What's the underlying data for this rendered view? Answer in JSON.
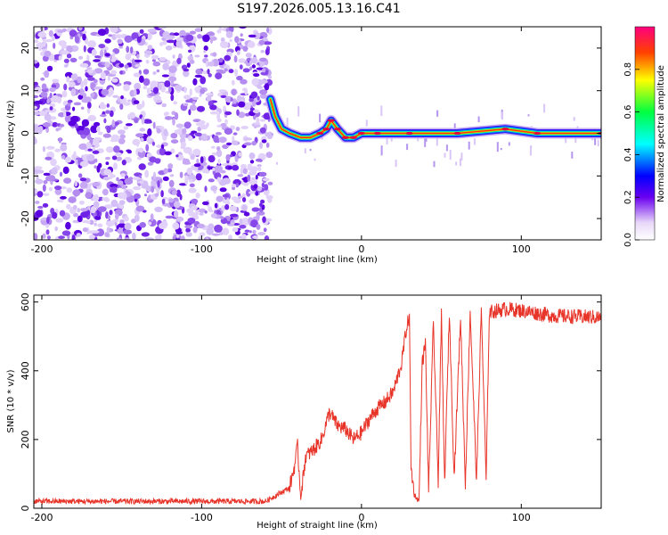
{
  "title": "S197.2026.005.13.16.C41",
  "chart_data": [
    {
      "type": "heatmap",
      "name": "spectrogram",
      "xlabel": "Height of straight line (km)",
      "ylabel": "Frequency (Hz)",
      "xlim": [
        -205,
        150
      ],
      "ylim": [
        -25,
        25
      ],
      "x_ticks": [
        -200,
        -100,
        0,
        100
      ],
      "y_ticks": [
        -20,
        -10,
        0,
        10,
        20
      ],
      "noise_region_x": [
        -205,
        -57
      ],
      "ridge": [
        {
          "x": -57,
          "y": 8
        },
        {
          "x": -54,
          "y": 4
        },
        {
          "x": -50,
          "y": 1
        },
        {
          "x": -45,
          "y": 0
        },
        {
          "x": -38,
          "y": -1
        },
        {
          "x": -32,
          "y": -1
        },
        {
          "x": -26,
          "y": 0
        },
        {
          "x": -22,
          "y": 1
        },
        {
          "x": -19,
          "y": 3
        },
        {
          "x": -15,
          "y": 1
        },
        {
          "x": -10,
          "y": -1
        },
        {
          "x": -5,
          "y": -1
        },
        {
          "x": 0,
          "y": 0
        },
        {
          "x": 10,
          "y": 0
        },
        {
          "x": 30,
          "y": 0
        },
        {
          "x": 60,
          "y": 0
        },
        {
          "x": 90,
          "y": 1
        },
        {
          "x": 110,
          "y": 0
        },
        {
          "x": 150,
          "y": 0
        }
      ],
      "colorbar": {
        "label": "Normalized spectral amplitude",
        "range": [
          0,
          1
        ],
        "ticks": [
          "0.0",
          "0.2",
          "0.4",
          "0.6",
          "0.8"
        ]
      }
    },
    {
      "type": "line",
      "name": "snr",
      "xlabel": "Height of straight line (km)",
      "ylabel": "SNR (10 * v/v)",
      "xlim": [
        -205,
        150
      ],
      "ylim": [
        0,
        620
      ],
      "x_ticks": [
        -200,
        -100,
        0,
        100
      ],
      "y_ticks": [
        0,
        200,
        400,
        600
      ],
      "color": "#e8352a",
      "x": [
        -205,
        -150,
        -100,
        -60,
        -45,
        -42,
        -40,
        -38,
        -35,
        -30,
        -25,
        -20,
        -15,
        -10,
        -5,
        0,
        5,
        10,
        15,
        20,
        25,
        28,
        30,
        31,
        33,
        36,
        38,
        40,
        42,
        45,
        48,
        50,
        52,
        55,
        58,
        62,
        65,
        68,
        72,
        75,
        78,
        80,
        85,
        90,
        100,
        120,
        150
      ],
      "y": [
        20,
        20,
        20,
        20,
        60,
        120,
        180,
        30,
        150,
        170,
        200,
        280,
        240,
        230,
        200,
        220,
        260,
        290,
        310,
        340,
        420,
        520,
        560,
        120,
        40,
        20,
        420,
        480,
        50,
        540,
        80,
        560,
        70,
        570,
        90,
        560,
        70,
        575,
        80,
        580,
        80,
        570,
        575,
        580,
        575,
        560,
        555
      ]
    }
  ]
}
